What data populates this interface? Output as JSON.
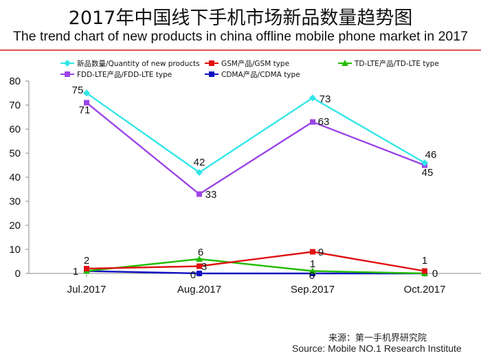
{
  "title_cn": "2017年中国线下手机市场新品数量趋势图",
  "title_en": "The trend chart of new products in china offline mobile phone market in 2017",
  "source_cn": "来源：第一手机界研究院",
  "source_en": "Source: Mobile NO.1 Research Institute",
  "chart_data": {
    "type": "line",
    "categories": [
      "Jul.2017",
      "Aug.2017",
      "Sep.2017",
      "Oct.2017"
    ],
    "ylim": [
      0,
      80
    ],
    "yticks": [
      0,
      10,
      20,
      30,
      40,
      50,
      60,
      70,
      80
    ],
    "grid": false,
    "legend_position": "top",
    "series": [
      {
        "name": "新品数量/Quantity of new products",
        "values": [
          75,
          42,
          73,
          46
        ],
        "color": "#33e6e6",
        "marker": "diamond"
      },
      {
        "name": "GSM产品/GSM type",
        "values": [
          2,
          3,
          9,
          1
        ],
        "color": "#e01010",
        "marker": "square"
      },
      {
        "name": "TD-LTE产品/TD-LTE type",
        "values": [
          1,
          6,
          1,
          0
        ],
        "color": "#22bb00",
        "marker": "triangle"
      },
      {
        "name": "FDD-LTE产品/FDD-LTE type",
        "values": [
          71,
          33,
          63,
          45
        ],
        "color": "#9b44e6",
        "marker": "square"
      },
      {
        "name": "CDMA产品/CDMA type",
        "values": [
          1,
          0,
          0,
          0
        ],
        "color": "#1010c0",
        "marker": "square"
      }
    ],
    "data_labels": [
      {
        "text": "75"
      },
      {
        "text": "42"
      },
      {
        "text": "73"
      },
      {
        "text": "46"
      },
      {
        "text": "71"
      },
      {
        "text": "33"
      },
      {
        "text": "63"
      },
      {
        "text": "45"
      },
      {
        "text": "2"
      },
      {
        "text": "6"
      },
      {
        "text": "9"
      },
      {
        "text": "1"
      },
      {
        "text": "1"
      },
      {
        "text": "0"
      },
      {
        "text": "3"
      },
      {
        "text": "1"
      },
      {
        "text": "0"
      },
      {
        "text": "0"
      }
    ]
  }
}
